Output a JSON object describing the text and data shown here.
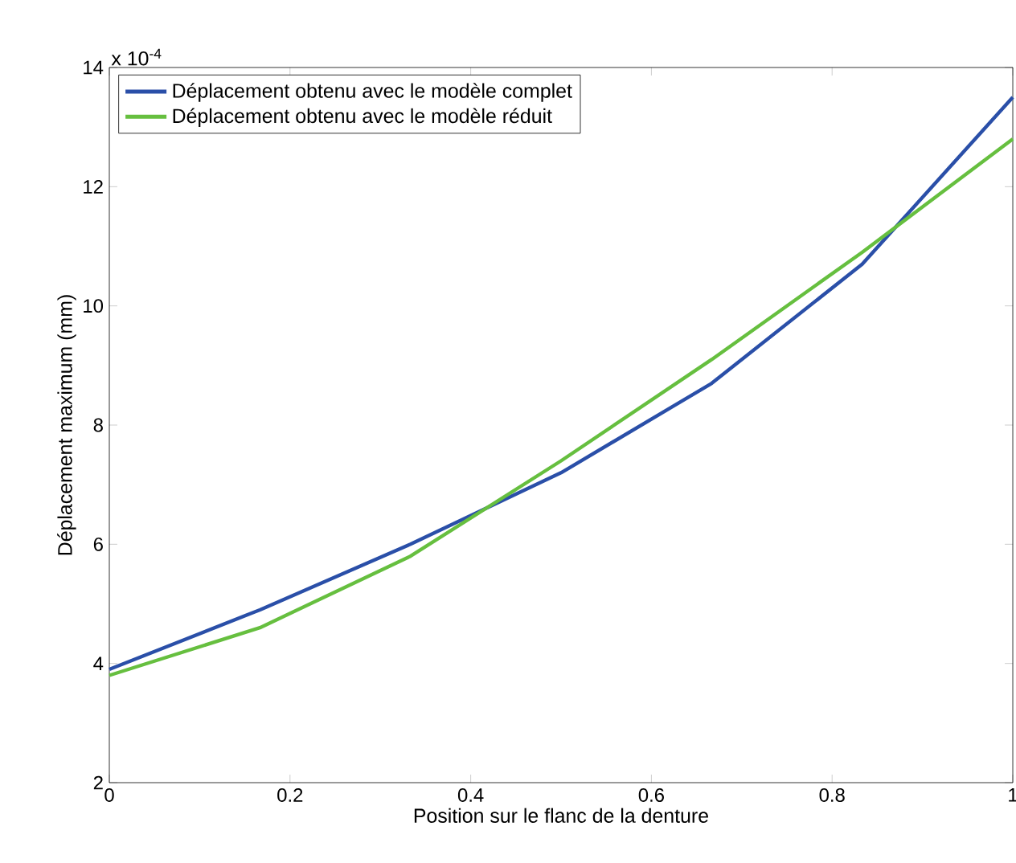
{
  "chart_data": {
    "type": "line",
    "xlabel": "Position sur le flanc de la denture",
    "ylabel": "Déplacement maximum (mm)",
    "annotations": [
      "x 10$^{-4}$"
    ],
    "x": [
      0,
      0.1667,
      0.3333,
      0.5,
      0.6667,
      0.8333,
      1
    ],
    "series": [
      {
        "name": "Déplacement obtenu avec le modèle complet",
        "color": "#2a4fa8",
        "values": [
          3.9,
          4.9,
          6.0,
          7.2,
          8.7,
          10.7,
          13.5
        ]
      },
      {
        "name": "Déplacement obtenu avec le modèle réduit",
        "color": "#66bf3f",
        "values": [
          3.8,
          4.6,
          5.8,
          7.4,
          9.1,
          10.9,
          12.8
        ]
      }
    ],
    "xlim": [
      0,
      1
    ],
    "ylim": [
      2,
      14
    ],
    "xticks": [
      0,
      0.2,
      0.4,
      0.6,
      0.8,
      1
    ],
    "yticks": [
      2,
      4,
      6,
      8,
      10,
      12,
      14
    ],
    "grid": false,
    "legend": "top left",
    "line_style": "solid",
    "marker": "none"
  }
}
